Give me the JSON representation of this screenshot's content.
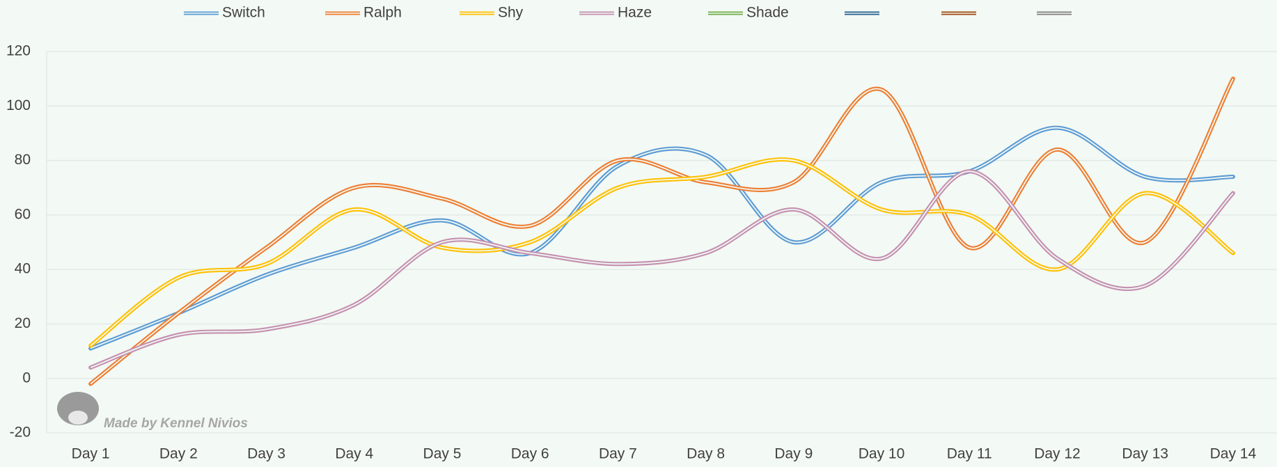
{
  "chart_data": {
    "type": "line",
    "categories": [
      "Day 1",
      "Day 2",
      "Day 3",
      "Day 4",
      "Day 5",
      "Day 6",
      "Day 7",
      "Day 8",
      "Day 9",
      "Day 10",
      "Day 11",
      "Day 12",
      "Day 13",
      "Day 14"
    ],
    "series": [
      {
        "name": "Switch",
        "color": "#5b9bd5",
        "values": [
          11,
          24,
          38,
          48,
          58,
          46,
          78,
          82,
          50,
          72,
          76,
          92,
          74,
          74
        ]
      },
      {
        "name": "Ralph",
        "color": "#ed7d31",
        "values": [
          -2,
          24,
          48,
          70,
          66,
          56,
          80,
          72,
          72,
          106,
          48,
          84,
          50,
          110
        ]
      },
      {
        "name": "Shy",
        "color": "#ffc000",
        "values": [
          12,
          37,
          42,
          62,
          48,
          50,
          70,
          74,
          80,
          62,
          60,
          40,
          68,
          46
        ]
      },
      {
        "name": "Haze",
        "color": "#c490b0",
        "values": [
          4,
          16,
          18,
          27,
          50,
          46,
          42,
          46,
          62,
          44,
          76,
          44,
          34,
          68
        ]
      },
      {
        "name": "Shade",
        "color": "#70ad47",
        "values": [
          null,
          null,
          null,
          null,
          null,
          null,
          null,
          null,
          null,
          null,
          null,
          null,
          null,
          null
        ]
      },
      {
        "name": null,
        "color": "#255e91",
        "values": [
          null,
          null,
          null,
          null,
          null,
          null,
          null,
          null,
          null,
          null,
          null,
          null,
          null,
          null
        ]
      },
      {
        "name": null,
        "color": "#9e480e",
        "values": [
          null,
          null,
          null,
          null,
          null,
          null,
          null,
          null,
          null,
          null,
          null,
          null,
          null,
          null
        ]
      },
      {
        "name": null,
        "color": "#7f7f7f",
        "values": [
          null,
          null,
          null,
          null,
          null,
          null,
          null,
          null,
          null,
          null,
          null,
          null,
          null,
          null
        ]
      }
    ],
    "ylim": [
      -20,
      120
    ],
    "yticks": [
      -20,
      0,
      20,
      40,
      60,
      80,
      100,
      120
    ],
    "grid": true,
    "legend": "top",
    "annotation": "Made by Kennel Nivios"
  }
}
